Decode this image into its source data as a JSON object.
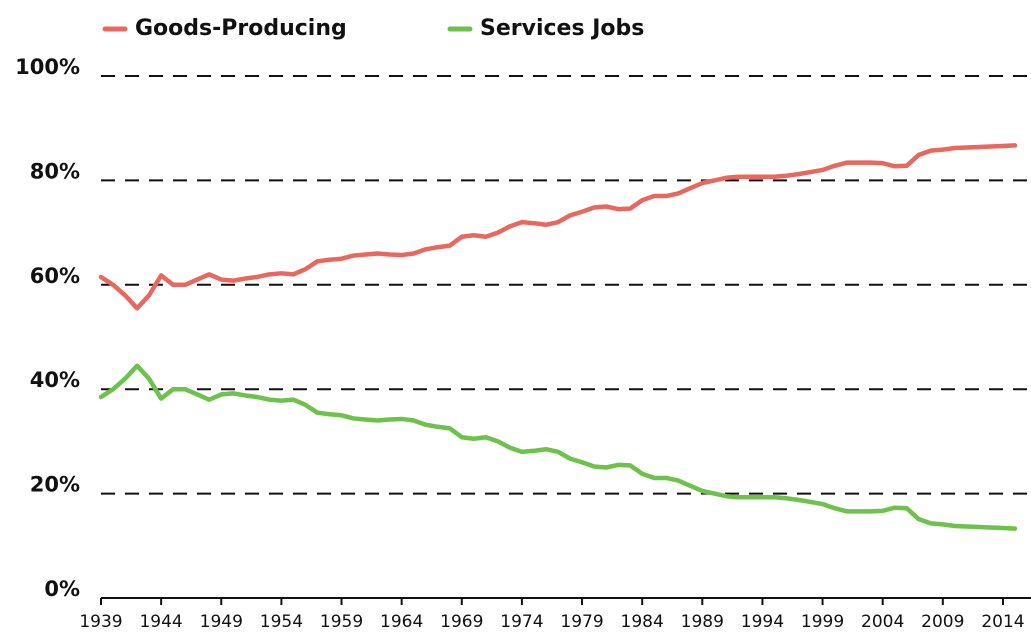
{
  "chart_data": {
    "type": "line",
    "x": [
      1939,
      1940,
      1941,
      1942,
      1943,
      1944,
      1945,
      1946,
      1947,
      1948,
      1949,
      1950,
      1951,
      1952,
      1953,
      1954,
      1955,
      1956,
      1957,
      1958,
      1959,
      1960,
      1961,
      1962,
      1963,
      1964,
      1965,
      1966,
      1967,
      1968,
      1969,
      1970,
      1971,
      1972,
      1973,
      1974,
      1975,
      1976,
      1977,
      1978,
      1979,
      1980,
      1981,
      1982,
      1983,
      1984,
      1985,
      1986,
      1987,
      1988,
      1989,
      1990,
      1991,
      1992,
      1993,
      1994,
      1995,
      1996,
      1997,
      1998,
      1999,
      2000,
      2001,
      2002,
      2003,
      2004,
      2005,
      2006,
      2007,
      2008,
      2009,
      2010,
      2011,
      2012,
      2013,
      2014,
      2015
    ],
    "series": [
      {
        "name": "Goods-Producing",
        "color": "#e8685f",
        "values": [
          61.5,
          60,
          58,
          55.5,
          58,
          61.8,
          60,
          60,
          61,
          62,
          61,
          60.8,
          61.2,
          61.5,
          62,
          62.2,
          62,
          63,
          64.5,
          64.8,
          65,
          65.6,
          65.8,
          66,
          65.8,
          65.7,
          66,
          66.8,
          67.2,
          67.5,
          69.2,
          69.5,
          69.2,
          70,
          71.2,
          72,
          71.8,
          71.5,
          72,
          73.3,
          74,
          74.8,
          75,
          74.5,
          74.6,
          76.2,
          77,
          77,
          77.5,
          78.5,
          79.5,
          80,
          80.5,
          80.7,
          80.7,
          80.7,
          80.7,
          80.9,
          81.2,
          81.6,
          82,
          82.8,
          83.4,
          83.4,
          83.4,
          83.3,
          82.7,
          82.8,
          84.9,
          85.7,
          85.9,
          86.2,
          86.3,
          86.4,
          86.5,
          86.6,
          86.7
        ]
      },
      {
        "name": "Services Jobs",
        "color": "#6cc24a",
        "values": [
          38.5,
          40,
          42,
          44.5,
          42,
          38.2,
          40,
          40,
          39,
          38,
          39,
          39.2,
          38.8,
          38.5,
          38,
          37.8,
          38,
          37,
          35.5,
          35.2,
          35,
          34.4,
          34.2,
          34,
          34.2,
          34.3,
          34,
          33.2,
          32.8,
          32.5,
          30.8,
          30.5,
          30.8,
          30,
          28.8,
          28,
          28.2,
          28.5,
          28,
          26.7,
          26,
          25.2,
          25,
          25.5,
          25.4,
          23.8,
          23,
          23,
          22.5,
          21.5,
          20.5,
          20,
          19.5,
          19.3,
          19.3,
          19.3,
          19.3,
          19.1,
          18.8,
          18.4,
          18,
          17.2,
          16.6,
          16.6,
          16.6,
          16.7,
          17.3,
          17.2,
          15.1,
          14.3,
          14.1,
          13.8,
          13.7,
          13.6,
          13.5,
          13.4,
          13.3
        ]
      }
    ],
    "xlim": [
      1939,
      2016
    ],
    "xticks": [
      1939,
      1944,
      1949,
      1954,
      1959,
      1964,
      1969,
      1974,
      1979,
      1984,
      1989,
      1994,
      1999,
      2004,
      2009,
      2014
    ],
    "ylim": [
      0,
      100
    ],
    "yticks": [
      {
        "value": 0,
        "label": "0%"
      },
      {
        "value": 20,
        "label": "20%"
      },
      {
        "value": 40,
        "label": "40%"
      },
      {
        "value": 60,
        "label": "60%"
      },
      {
        "value": 80,
        "label": "80%"
      },
      {
        "value": 100,
        "label": "100%"
      }
    ],
    "grid": true
  }
}
